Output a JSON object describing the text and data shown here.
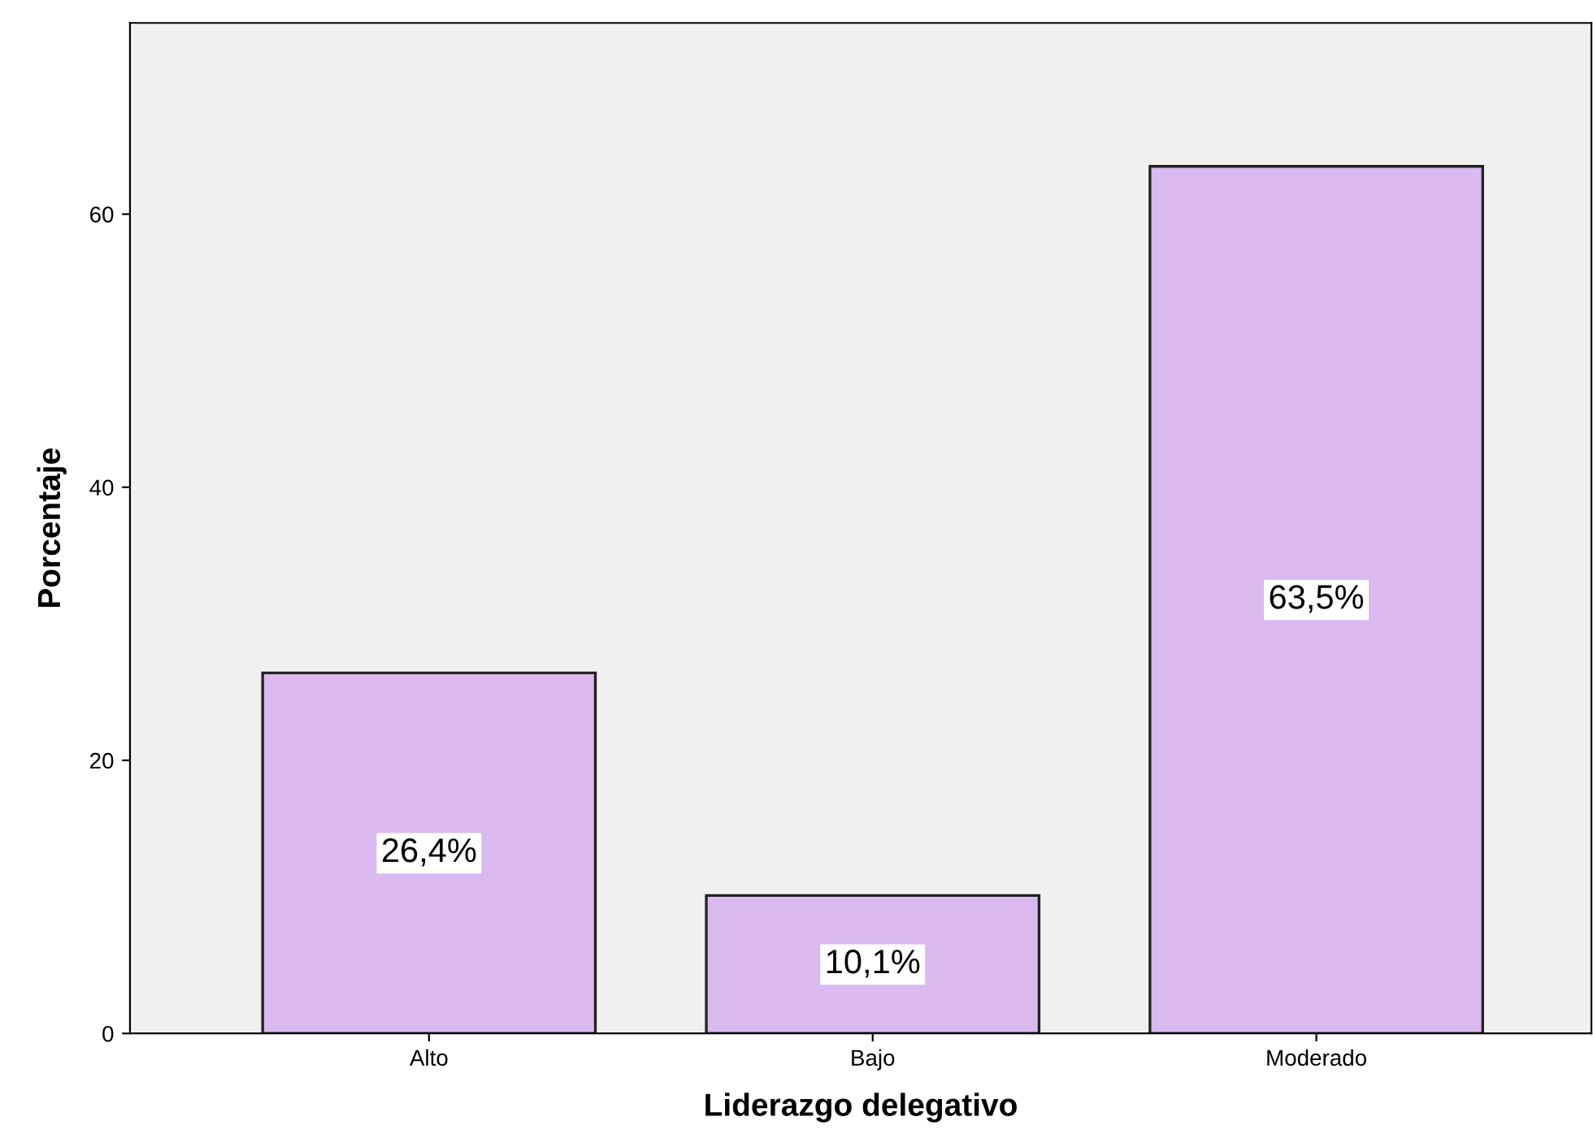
{
  "chart_data": {
    "type": "bar",
    "xlabel": "Liderazgo delegativo",
    "ylabel": "Porcentaje",
    "categories": [
      "Alto",
      "Bajo",
      "Moderado"
    ],
    "values": [
      26.4,
      10.1,
      63.5
    ],
    "value_labels": [
      "26,4%",
      "10,1%",
      "63,5%"
    ],
    "color": "#dab8f0",
    "ylim": [
      0,
      74
    ],
    "yticks": [
      0,
      20,
      40,
      60
    ],
    "grid": false,
    "legend": false
  }
}
